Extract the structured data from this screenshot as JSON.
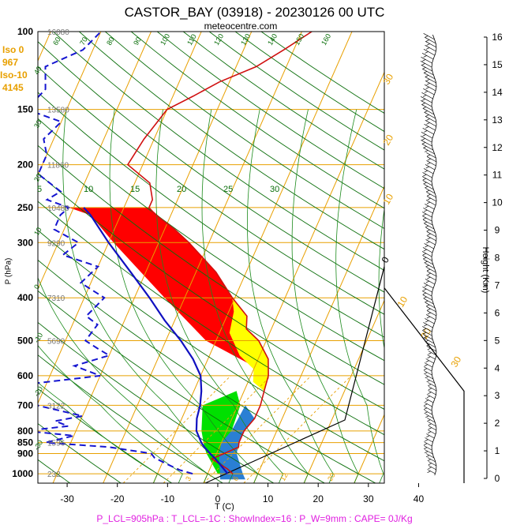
{
  "header": {
    "title": "CASTOR_BAY (03918) - 20230126 00 UTC",
    "site": "meteocentre.com",
    "iso_info": [
      "Iso 0",
      "967",
      "Iso-10",
      "4145"
    ]
  },
  "footer": {
    "text": "P_LCL=905hPa : T_LCL=-1C : ShowIndex=16 : P_W=9mm : CAPE= 0J/Kg"
  },
  "colors": {
    "temperature": "#d01010",
    "dewpoint": "#1515d0",
    "parcel": "#1010c0",
    "isotherm": "#e8a000",
    "dry_adiabat": "#0a6e0a",
    "red_fill": "#ff0000",
    "yellow_fill": "#ffff00",
    "green_fill": "#00e000",
    "blue_fill": "#2a7fd4",
    "footer_text": "#e020e0",
    "iso_text": "#e8a000"
  },
  "chart_data": {
    "type": "line",
    "title": "CASTOR_BAY (03918) - 20230126 00 UTC",
    "xlabel": "T (C)",
    "ylabel": "P (hPa)",
    "right_label": "Height (Km)",
    "x_ticks": [
      -30,
      -20,
      -10,
      0,
      10,
      20,
      30,
      40
    ],
    "xlim": [
      -33,
      36
    ],
    "pressure_ticks": [
      100,
      150,
      200,
      250,
      300,
      400,
      500,
      600,
      700,
      800,
      850,
      900,
      1000
    ],
    "ylim": [
      1050,
      100
    ],
    "height_labels": [
      {
        "p": 1000,
        "z": "232"
      },
      {
        "p": 850,
        "z": "1596"
      },
      {
        "p": 700,
        "z": "3122"
      },
      {
        "p": 500,
        "z": "5690"
      },
      {
        "p": 400,
        "z": "7310"
      },
      {
        "p": 300,
        "z": "9290"
      },
      {
        "p": 250,
        "z": "10480"
      },
      {
        "p": 200,
        "z": "11860"
      },
      {
        "p": 150,
        "z": "13580"
      },
      {
        "p": 100,
        "z": "16080"
      }
    ],
    "km_ticks": [
      "0",
      "1",
      "2",
      "3",
      "4",
      "5",
      "6",
      "7",
      "8",
      "9",
      "10",
      "11",
      "12",
      "13",
      "14",
      "15",
      "16"
    ],
    "mixing_ratio_labels": [
      "3",
      "6",
      "12",
      "20"
    ],
    "dry_adiabat_labels": [
      "60",
      "70",
      "80",
      "90",
      "100",
      "110",
      "120",
      "130",
      "140",
      "150",
      "160",
      "40",
      "30",
      "20",
      "10",
      "0",
      "-10",
      "-20",
      "-30"
    ],
    "moist_adiabat_labels": [
      "5",
      "10",
      "15",
      "20",
      "25",
      "30"
    ],
    "isotherm_slant_labels": [
      "30",
      "20",
      "10",
      "0",
      "10",
      "20",
      "30"
    ],
    "series": [
      {
        "name": "temperature",
        "points": [
          [
            1000,
            5
          ],
          [
            975,
            3.5
          ],
          [
            950,
            1.5
          ],
          [
            925,
            -0.5
          ],
          [
            900,
            1.5
          ],
          [
            870,
            3.8
          ],
          [
            850,
            3.5
          ],
          [
            800,
            3.5
          ],
          [
            750,
            4.5
          ],
          [
            700,
            4.5
          ],
          [
            650,
            4
          ],
          [
            600,
            3.5
          ],
          [
            550,
            2
          ],
          [
            500,
            -1.5
          ],
          [
            470,
            -5
          ],
          [
            440,
            -6
          ],
          [
            400,
            -10.5
          ],
          [
            350,
            -16
          ],
          [
            300,
            -24
          ],
          [
            280,
            -28
          ],
          [
            260,
            -33
          ],
          [
            250,
            -35
          ],
          [
            240,
            -35
          ],
          [
            220,
            -37
          ],
          [
            200,
            -43
          ],
          [
            175,
            -42
          ],
          [
            150,
            -40
          ],
          [
            140,
            -36
          ],
          [
            130,
            -32
          ],
          [
            120,
            -26
          ],
          [
            110,
            -22
          ],
          [
            100,
            -18
          ]
        ]
      },
      {
        "name": "dewpoint",
        "points": [
          [
            1000,
            -3
          ],
          [
            980,
            -6
          ],
          [
            950,
            -9
          ],
          [
            920,
            -12
          ],
          [
            900,
            -13
          ],
          [
            870,
            -22
          ],
          [
            850,
            -35
          ],
          [
            820,
            -30
          ],
          [
            800,
            -40
          ],
          [
            780,
            -32
          ],
          [
            760,
            -35
          ],
          [
            740,
            -30
          ],
          [
            700,
            -40
          ],
          [
            660,
            -43
          ],
          [
            630,
            -45
          ],
          [
            600,
            -30
          ],
          [
            570,
            -36
          ],
          [
            540,
            -30
          ],
          [
            520,
            -33
          ],
          [
            500,
            -36
          ],
          [
            460,
            -35
          ],
          [
            440,
            -38
          ],
          [
            400,
            -36
          ],
          [
            370,
            -42
          ],
          [
            340,
            -40
          ],
          [
            320,
            -48
          ],
          [
            300,
            -46
          ],
          [
            280,
            -52
          ],
          [
            260,
            -52
          ],
          [
            250,
            -51
          ],
          [
            240,
            -56
          ],
          [
            230,
            -54
          ],
          [
            210,
            -60
          ],
          [
            200,
            -60
          ],
          [
            190,
            -60
          ],
          [
            175,
            -62
          ],
          [
            160,
            -60
          ],
          [
            150,
            -68
          ],
          [
            135,
            -66
          ],
          [
            120,
            -68
          ],
          [
            110,
            -62
          ],
          [
            100,
            -60
          ]
        ]
      },
      {
        "name": "parcel",
        "points": [
          [
            1000,
            4
          ],
          [
            960,
            2
          ],
          [
            930,
            0.5
          ],
          [
            905,
            -1
          ],
          [
            870,
            -3
          ],
          [
            850,
            -4
          ],
          [
            800,
            -6
          ],
          [
            750,
            -7
          ],
          [
            700,
            -7.5
          ],
          [
            650,
            -8.5
          ],
          [
            600,
            -10
          ],
          [
            550,
            -13
          ],
          [
            500,
            -17
          ],
          [
            450,
            -22
          ],
          [
            400,
            -27
          ],
          [
            350,
            -33
          ],
          [
            300,
            -40
          ],
          [
            260,
            -46
          ],
          [
            250,
            -48
          ]
        ]
      }
    ],
    "isotherm_values": [
      -100,
      -90,
      -80,
      -70,
      -60,
      -50,
      -40,
      -30,
      -20,
      -10,
      0,
      10,
      20,
      30,
      40
    ]
  }
}
